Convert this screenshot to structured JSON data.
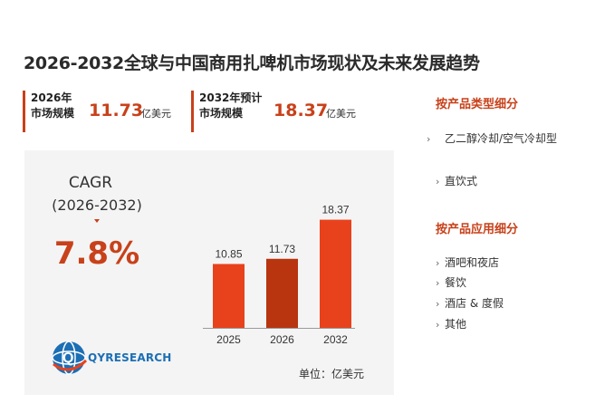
{
  "title": "2026-2032全球与中国商用扎啤机市场现状及未来发展趋势",
  "stats": [
    {
      "label_line1": "2026年",
      "label_line2": "市场规模",
      "value": "11.73",
      "unit": "亿美元"
    },
    {
      "label_line1": "2032年预计",
      "label_line2": "市场规模",
      "value": "18.37",
      "unit": "亿美元"
    }
  ],
  "cagr": {
    "label": "CAGR",
    "range": "(2026-2032)",
    "value": "7.8%"
  },
  "logo": {
    "text": "QYRESEARCH"
  },
  "chart_data": {
    "type": "bar",
    "categories": [
      "2025",
      "2026",
      "2032"
    ],
    "values": [
      10.85,
      11.73,
      18.37
    ],
    "data_labels": [
      "10.85",
      "11.73",
      "18.37"
    ],
    "colors": [
      "#e8421c",
      "#b83510",
      "#e8421c"
    ],
    "unit_note": "单位：亿美元"
  },
  "sidebar": {
    "type_heading": "按产品类型细分",
    "type_items": [
      "乙二醇冷却/空气冷却型",
      "直饮式"
    ],
    "app_heading": "按产品应用细分",
    "app_items": [
      "酒吧和夜店",
      "餐饮",
      "酒店 & 度假",
      "其他"
    ]
  },
  "colors": {
    "accent": "#c8411a",
    "panel": "#f4f4f4",
    "logo_blue": "#1c6fb5"
  }
}
